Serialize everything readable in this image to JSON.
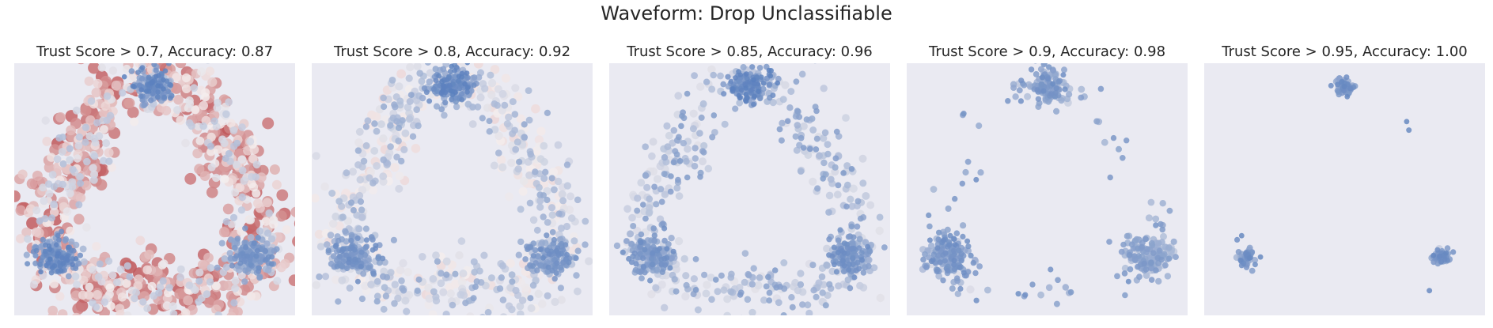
{
  "figure": {
    "title": "Waveform: Drop Unclassifiable"
  },
  "palette": {
    "blue": "#4a74b8",
    "white": "#f4eeee",
    "red": "#c0575a",
    "axes_bg": "#eaeaf2"
  },
  "chart_data": [
    {
      "type": "scatter",
      "title": "Trust Score > 0.7, Accuracy: 0.87",
      "threshold": 0.7,
      "accuracy": 0.87,
      "grid": false,
      "legend": "none",
      "color_scale": "blue-white-red (diverging)",
      "clusters": [
        {
          "name": "top",
          "cx": 0.0,
          "cy": 1.0,
          "spread": 0.09,
          "count": 170,
          "color_value": 0.05
        },
        {
          "name": "bottom-left",
          "cx": -0.87,
          "cy": -0.5,
          "spread": 0.1,
          "count": 170,
          "color_value": 0.05
        },
        {
          "name": "bottom-right",
          "cx": 0.87,
          "cy": -0.5,
          "spread": 0.1,
          "count": 170,
          "color_value": 0.1
        }
      ],
      "ring": {
        "count": 900,
        "color_range": [
          0.3,
          1.0
        ],
        "width": 0.16
      }
    },
    {
      "type": "scatter",
      "title": "Trust Score > 0.8, Accuracy: 0.92",
      "threshold": 0.8,
      "accuracy": 0.92,
      "grid": false,
      "legend": "none",
      "color_scale": "blue-white-red (diverging)",
      "clusters": [
        {
          "name": "top",
          "cx": 0.0,
          "cy": 1.0,
          "spread": 0.09,
          "count": 160,
          "color_value": 0.05
        },
        {
          "name": "bottom-left",
          "cx": -0.87,
          "cy": -0.5,
          "spread": 0.1,
          "count": 160,
          "color_value": 0.1
        },
        {
          "name": "bottom-right",
          "cx": 0.87,
          "cy": -0.5,
          "spread": 0.1,
          "count": 160,
          "color_value": 0.1
        }
      ],
      "ring": {
        "count": 650,
        "color_range": [
          0.2,
          0.58
        ],
        "width": 0.15
      }
    },
    {
      "type": "scatter",
      "title": "Trust Score > 0.85, Accuracy: 0.96",
      "threshold": 0.85,
      "accuracy": 0.96,
      "grid": false,
      "legend": "none",
      "color_scale": "blue-white-red (diverging)",
      "clusters": [
        {
          "name": "top",
          "cx": 0.0,
          "cy": 1.0,
          "spread": 0.09,
          "count": 150,
          "color_value": 0.05
        },
        {
          "name": "bottom-left",
          "cx": -0.87,
          "cy": -0.5,
          "spread": 0.1,
          "count": 150,
          "color_value": 0.1
        },
        {
          "name": "bottom-right",
          "cx": 0.87,
          "cy": -0.5,
          "spread": 0.1,
          "count": 150,
          "color_value": 0.1
        }
      ],
      "ring": {
        "count": 450,
        "color_range": [
          0.15,
          0.45
        ],
        "width": 0.13
      }
    },
    {
      "type": "scatter",
      "title": "Trust Score > 0.9, Accuracy: 0.98",
      "threshold": 0.9,
      "accuracy": 0.98,
      "grid": false,
      "legend": "none",
      "color_scale": "blue-white-red (diverging)",
      "clusters": [
        {
          "name": "top",
          "cx": 0.0,
          "cy": 1.0,
          "spread": 0.09,
          "count": 120,
          "color_value": 0.1
        },
        {
          "name": "bottom-left",
          "cx": -0.87,
          "cy": -0.5,
          "spread": 0.11,
          "count": 170,
          "color_value": 0.1
        },
        {
          "name": "bottom-right",
          "cx": 0.87,
          "cy": -0.5,
          "spread": 0.11,
          "count": 150,
          "color_value": 0.15
        }
      ],
      "ring": {
        "count": 70,
        "color_range": [
          0.1,
          0.3
        ],
        "width": 0.1
      }
    },
    {
      "type": "scatter",
      "title": "Trust Score > 0.95, Accuracy: 1.00",
      "threshold": 0.95,
      "accuracy": 1.0,
      "grid": false,
      "legend": "none",
      "color_scale": "blue-white-red (diverging)",
      "clusters": [
        {
          "name": "top",
          "cx": 0.0,
          "cy": 1.0,
          "spread": 0.045,
          "count": 60,
          "color_value": 0.08
        },
        {
          "name": "bottom-left",
          "cx": -0.87,
          "cy": -0.5,
          "spread": 0.04,
          "count": 55,
          "color_value": 0.08
        },
        {
          "name": "bottom-right",
          "cx": 0.87,
          "cy": -0.5,
          "spread": 0.04,
          "count": 55,
          "color_value": 0.08
        }
      ],
      "ring": {
        "count": 8,
        "color_range": [
          0.08,
          0.12
        ],
        "width": 0.06
      }
    }
  ]
}
